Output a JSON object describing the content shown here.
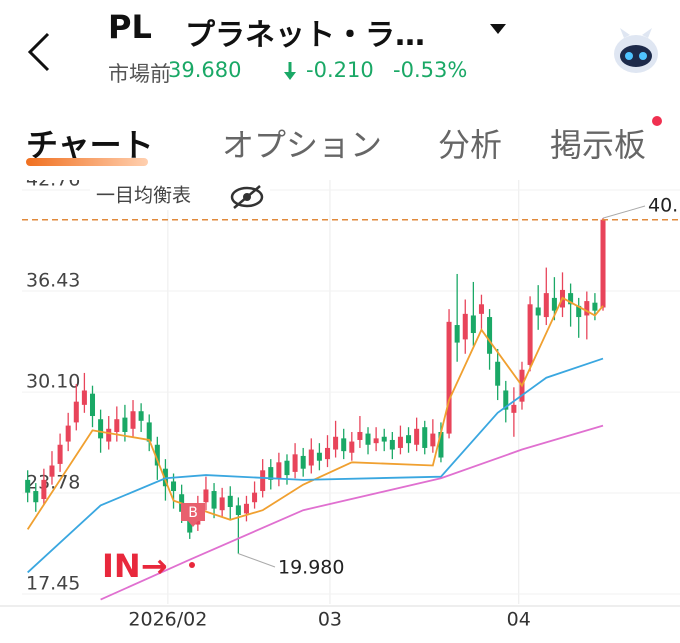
{
  "header": {
    "symbol": "PL",
    "name": "プラネット・ラ…",
    "session": "市場前",
    "price": "39.680",
    "change": "-0.210",
    "change_pct": "-0.53%"
  },
  "tabs": [
    "チャート",
    "オプション",
    "分析",
    "掲示板"
  ],
  "chart_data": {
    "type": "candlestick",
    "indicator": "一目均衡表",
    "open": [
      24.6,
      23.9,
      23.4,
      24.8,
      25.6,
      27.0,
      28.2,
      29.3,
      30.0,
      28.4,
      27.0,
      27.6,
      28.5,
      27.8,
      28.9,
      28.2,
      26.8,
      25.3,
      24.5,
      23.7,
      22.5,
      21.8,
      23.2,
      23.9,
      22.7,
      23.6,
      23.0,
      22.5,
      23.2,
      23.9,
      25.4,
      24.7,
      25.8,
      25.1,
      26.1,
      25.5,
      26.3,
      25.9,
      26.5,
      27.2,
      26.3,
      27.1,
      27.5,
      26.9,
      27.3,
      27.1,
      26.6,
      27.4,
      26.8,
      27.9,
      26.7,
      27.6,
      27.5,
      34.3,
      33.4,
      34.9,
      35.0,
      34.8,
      32.0,
      30.2,
      28.8,
      29.5,
      31.8,
      35.4,
      34.8,
      36.0,
      35.4,
      36.3,
      35.5,
      34.9,
      35.7,
      35.4
    ],
    "high": [
      25.2,
      24.4,
      25.3,
      26.4,
      27.5,
      28.8,
      30.6,
      31.3,
      30.5,
      29.0,
      28.6,
      29.2,
      29.3,
      29.6,
      29.4,
      28.7,
      27.3,
      25.9,
      25.0,
      24.3,
      23.0,
      23.6,
      24.8,
      24.4,
      24.1,
      24.2,
      23.5,
      23.6,
      24.5,
      25.9,
      25.9,
      26.3,
      26.2,
      26.9,
      26.6,
      27.2,
      26.9,
      27.4,
      28.3,
      27.8,
      27.6,
      28.6,
      27.9,
      27.9,
      27.8,
      27.6,
      28.0,
      27.9,
      28.5,
      28.3,
      28.4,
      28.2,
      35.3,
      37.5,
      35.9,
      37.0,
      36.2,
      35.3,
      32.8,
      30.8,
      30.4,
      32.0,
      36.1,
      36.8,
      37.9,
      37.3,
      37.6,
      36.9,
      36.0,
      36.4,
      36.3,
      41.0
    ],
    "low": [
      23.2,
      22.6,
      23.0,
      24.3,
      25.1,
      26.4,
      27.7,
      28.8,
      27.9,
      26.3,
      26.5,
      27.0,
      27.0,
      27.3,
      27.6,
      26.4,
      24.6,
      23.3,
      22.8,
      21.9,
      20.9,
      21.4,
      22.7,
      22.2,
      22.3,
      22.1,
      19.98,
      22.0,
      22.8,
      23.5,
      24.0,
      24.2,
      24.3,
      24.7,
      24.8,
      25.0,
      25.2,
      25.4,
      26.0,
      25.9,
      25.8,
      26.6,
      26.2,
      26.4,
      26.4,
      25.9,
      26.2,
      26.3,
      26.4,
      26.2,
      26.3,
      25.7,
      27.2,
      32.0,
      32.5,
      33.0,
      34.0,
      31.5,
      29.6,
      28.2,
      27.3,
      29.0,
      31.4,
      34.0,
      34.3,
      34.6,
      34.8,
      34.2,
      33.5,
      33.4,
      34.6,
      35.2
    ],
    "close": [
      23.8,
      23.2,
      24.6,
      25.5,
      26.8,
      28.0,
      29.5,
      30.2,
      28.6,
      27.2,
      27.8,
      28.4,
      27.6,
      28.9,
      28.3,
      27.0,
      25.5,
      24.2,
      23.9,
      22.6,
      21.3,
      23.0,
      24.0,
      22.8,
      23.5,
      22.9,
      22.4,
      23.1,
      23.8,
      25.2,
      24.6,
      25.7,
      24.9,
      26.2,
      25.3,
      26.5,
      25.8,
      26.6,
      27.3,
      26.4,
      27.0,
      27.6,
      26.8,
      27.2,
      27.0,
      26.5,
      27.3,
      26.9,
      27.8,
      26.6,
      27.5,
      26.0,
      34.5,
      33.2,
      35.0,
      33.8,
      35.6,
      32.5,
      30.5,
      29.0,
      29.3,
      31.5,
      35.6,
      34.9,
      36.3,
      35.2,
      36.5,
      35.6,
      34.8,
      35.8,
      35.2,
      40.9
    ],
    "up_color": "#e8445a",
    "down_color": "#1aa866",
    "lines": [
      {
        "color": "#f0a030",
        "x": [
          0,
          8,
          15,
          18,
          25,
          29,
          34,
          40,
          50,
          52,
          56,
          61,
          66,
          70,
          71
        ],
        "values": [
          21.5,
          27.7,
          27.1,
          23.3,
          22.1,
          22.7,
          24.3,
          25.7,
          25.5,
          29.6,
          34.0,
          30.5,
          36.0,
          34.9,
          35.5
        ]
      },
      {
        "color": "#3aa7e0",
        "x": [
          0,
          9,
          17,
          22,
          34,
          51,
          58,
          64,
          71
        ],
        "values": [
          18.8,
          23.0,
          24.7,
          24.9,
          24.6,
          24.8,
          28.8,
          31.0,
          32.2
        ]
      },
      {
        "color": "#e070d0",
        "x": [
          9,
          20,
          34,
          51,
          61,
          71
        ],
        "values": [
          17.1,
          19.6,
          22.7,
          24.7,
          26.5,
          28.0
        ]
      }
    ],
    "ylim": [
      17.45,
      42.76
    ],
    "yticks": [
      17.45,
      23.78,
      {
        "value": 30.1,
        "label": "30.10"
      },
      36.43,
      42.76
    ],
    "xlim": [
      -0.7,
      80.5
    ],
    "xticks": [
      {
        "value": 17.3,
        "label": "2026/02"
      },
      {
        "value": 37.3,
        "label": "03"
      },
      {
        "value": 60.6,
        "label": "04"
      }
    ],
    "grid": true,
    "annotations": {
      "last": "40.",
      "low": "19.980",
      "entry": "IN→",
      "buy": "B"
    }
  }
}
